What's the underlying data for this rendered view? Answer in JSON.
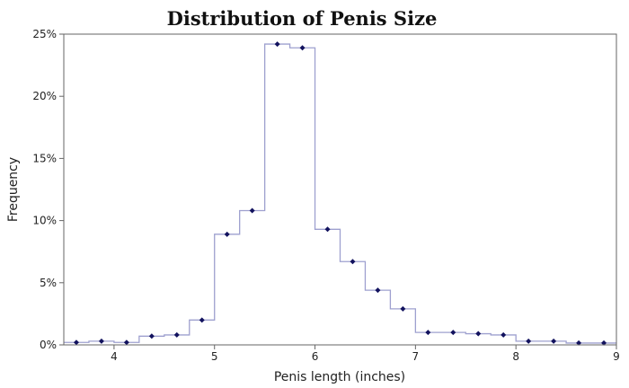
{
  "chart_data": {
    "type": "line",
    "title": "Distribution of Penis Size",
    "xlabel": "Penis length (inches)",
    "ylabel": "Frequency",
    "xlim": [
      3.5,
      9
    ],
    "ylim": [
      0,
      25
    ],
    "x_ticks": [
      4,
      5,
      6,
      7,
      8,
      9
    ],
    "y_ticks": [
      0,
      5,
      10,
      15,
      20,
      25
    ],
    "y_tick_labels": [
      "0%",
      "5%",
      "10%",
      "15%",
      "20%",
      "25%"
    ],
    "x_tick_labels": [
      "4",
      "5",
      "6",
      "7",
      "8",
      "9"
    ],
    "grid": false,
    "bin_width": 0.25,
    "series": [
      {
        "x": [
          3.625,
          3.875,
          4.125,
          4.375,
          4.625,
          4.875,
          5.125,
          5.375,
          5.625,
          5.875,
          6.125,
          6.375,
          6.625,
          6.875,
          7.125,
          7.375,
          7.625,
          7.875,
          8.125,
          8.375,
          8.625,
          8.875
        ],
        "values": [
          0.2,
          0.3,
          0.2,
          0.7,
          0.8,
          2.0,
          8.9,
          10.8,
          24.2,
          23.9,
          9.3,
          6.7,
          4.4,
          2.9,
          1.0,
          1.0,
          0.9,
          0.8,
          0.3,
          0.3,
          0.15,
          0.15
        ]
      }
    ],
    "colors": {
      "step_line": "#9ea0cf",
      "marker": "#12125e",
      "axis": "#666666"
    }
  }
}
